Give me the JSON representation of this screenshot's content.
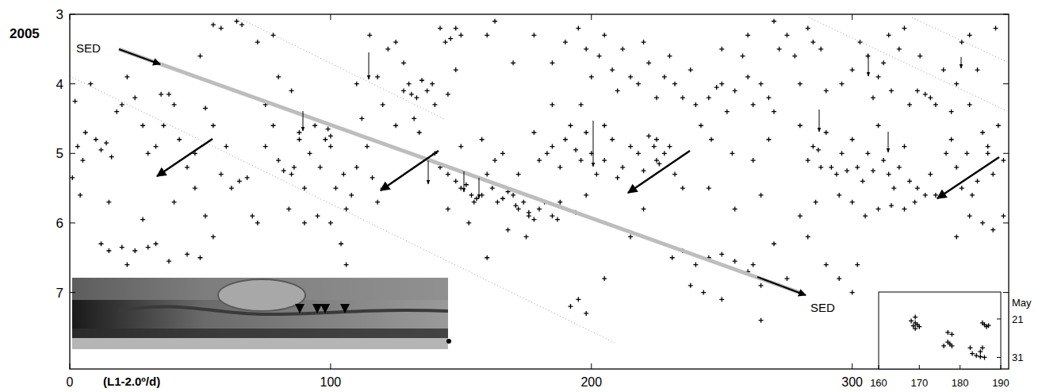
{
  "chart_data": [
    {
      "type": "scatter",
      "xlabel": "(L1-2.0º/d)",
      "year_label": "2005",
      "annotations": [
        "SED",
        "SED"
      ],
      "marker": "plus",
      "color": "#000000",
      "x": [
        2,
        3,
        5,
        1,
        4,
        8,
        10,
        12,
        14,
        16,
        6,
        18,
        20,
        22,
        25,
        28,
        30,
        33,
        35,
        38,
        40,
        42,
        45,
        48,
        50,
        52,
        55,
        58,
        36,
        15,
        12,
        15,
        20,
        25,
        30,
        33,
        38,
        45,
        50,
        55,
        22,
        28,
        40,
        48,
        52,
        60,
        62,
        65,
        68,
        70,
        72,
        55,
        58,
        64,
        66,
        72,
        78,
        80,
        75,
        78,
        80,
        82,
        85,
        86,
        88,
        90,
        92,
        94,
        96,
        98,
        99,
        100,
        100,
        102,
        105,
        108,
        110,
        112,
        84,
        90,
        95,
        100,
        106,
        75,
        85,
        88,
        110,
        114,
        116,
        118,
        120,
        104,
        106,
        118,
        122,
        125,
        128,
        128,
        130,
        131,
        133,
        135,
        137,
        139,
        142,
        144,
        146,
        148,
        150,
        140,
        145,
        148,
        120,
        115,
        125,
        134,
        132,
        140,
        142,
        145,
        148,
        150,
        152,
        154,
        155,
        156,
        158,
        160,
        162,
        164,
        166,
        168,
        170,
        171,
        172,
        174,
        176,
        176,
        178,
        180,
        182,
        185,
        187,
        163,
        166,
        172,
        150,
        158,
        145,
        153,
        168,
        175,
        160,
        178,
        180,
        183,
        185,
        188,
        190,
        192,
        194,
        196,
        198,
        200,
        202,
        205,
        208,
        210,
        212,
        215,
        218,
        220,
        222,
        224,
        225,
        225,
        226,
        228,
        230,
        232,
        235,
        188,
        194,
        198,
        185,
        196,
        205,
        190,
        195,
        198,
        200,
        203,
        205,
        208,
        210,
        212,
        215,
        218,
        220,
        222,
        225,
        228,
        230,
        232,
        235,
        238,
        240,
        185,
        178,
        160,
        163,
        170,
        242,
        245,
        248,
        250,
        252,
        255,
        258,
        260,
        262,
        265,
        268,
        270,
        272,
        275,
        278,
        280,
        283,
        285,
        288,
        290,
        270,
        260,
        250,
        246,
        254,
        262,
        268,
        231,
        235,
        240,
        245,
        250,
        255,
        260,
        262,
        265,
        270,
        265,
        243,
        250,
        238,
        192,
        195,
        198,
        205,
        215,
        220,
        245,
        255,
        265,
        280,
        290,
        295,
        300,
        302,
        283,
        275,
        280,
        283,
        285,
        287,
        288,
        290,
        292,
        294,
        296,
        298,
        300,
        302,
        304,
        306,
        308,
        310,
        312,
        314,
        316,
        318,
        320,
        322,
        325,
        328,
        330,
        332,
        286,
        295,
        300,
        305,
        310,
        315,
        320,
        324,
        296,
        300,
        303,
        306,
        308,
        310,
        312,
        315,
        318,
        320,
        322,
        325,
        328,
        330,
        332,
        335,
        338,
        340,
        342,
        345,
        326,
        314,
        336,
        338,
        340,
        342,
        344,
        346,
        348,
        350,
        352,
        354,
        356,
        358,
        345,
        350,
        354,
        358,
        340,
        355,
        348,
        352,
        345
      ],
      "values": [
        4.25,
        4.9,
        5.1,
        5.35,
        5.6,
        4.0,
        4.8,
        4.95,
        4.85,
        5.05,
        4.7,
        4.4,
        4.3,
        3.9,
        4.2,
        4.6,
        5.0,
        4.9,
        4.15,
        4.15,
        4.3,
        4.8,
        5.2,
        5.0,
        3.6,
        4.35,
        4.6,
        5.3,
        4.6,
        5.7,
        6.3,
        6.4,
        6.35,
        6.4,
        6.35,
        6.3,
        6.55,
        6.45,
        6.5,
        6.2,
        6.6,
        5.95,
        5.7,
        5.5,
        5.9,
        4.9,
        5.5,
        5.4,
        5.35,
        5.9,
        6.0,
        3.15,
        3.2,
        3.1,
        3.15,
        3.4,
        3.3,
        3.9,
        4.9,
        4.6,
        5.1,
        5.25,
        5.3,
        5.2,
        4.8,
        5.5,
        5.0,
        4.6,
        5.2,
        4.8,
        4.65,
        4.9,
        4.75,
        5.5,
        5.3,
        5.6,
        5.2,
        4.5,
        5.8,
        6.0,
        5.9,
        6.0,
        5.8,
        4.3,
        4.1,
        4.7,
        4.0,
        4.9,
        5.35,
        5.7,
        5.5,
        6.3,
        6.6,
        3.9,
        3.5,
        3.4,
        3.7,
        4.1,
        4.0,
        4.15,
        4.2,
        3.95,
        4.1,
        4.0,
        3.2,
        3.4,
        3.35,
        3.2,
        3.3,
        4.3,
        4.15,
        3.8,
        4.3,
        3.3,
        4.6,
        4.7,
        4.5,
        5.0,
        5.2,
        5.3,
        5.4,
        5.5,
        5.45,
        5.6,
        5.7,
        5.65,
        5.6,
        5.3,
        5.5,
        5.7,
        5.65,
        5.55,
        5.6,
        5.75,
        5.8,
        5.7,
        5.85,
        5.9,
        5.95,
        5.8,
        5.7,
        5.9,
        5.95,
        5.1,
        5.0,
        5.3,
        4.9,
        4.8,
        5.8,
        6.0,
        6.1,
        6.2,
        6.5,
        4.7,
        5.1,
        5.0,
        4.9,
        5.2,
        4.8,
        4.6,
        4.95,
        5.1,
        4.7,
        5.0,
        5.3,
        5.1,
        4.8,
        5.35,
        5.2,
        4.9,
        5.0,
        5.25,
        4.75,
        4.9,
        4.8,
        5.1,
        5.15,
        5.0,
        4.9,
        5.3,
        5.5,
        5.7,
        5.85,
        5.6,
        4.3,
        4.3,
        4.6,
        3.4,
        3.2,
        3.5,
        3.9,
        3.6,
        3.3,
        3.8,
        4.1,
        3.5,
        3.9,
        4.0,
        3.4,
        3.7,
        4.2,
        3.9,
        3.6,
        4.0,
        4.2,
        3.8,
        4.3,
        3.7,
        3.3,
        3.3,
        3.1,
        3.7,
        4.6,
        4.2,
        4.05,
        4.0,
        4.4,
        4.1,
        3.6,
        3.9,
        4.3,
        4.0,
        4.2,
        4.4,
        3.5,
        3.3,
        3.6,
        4.0,
        3.2,
        3.4,
        3.5,
        4.1,
        3.1,
        3.3,
        3.5,
        4.8,
        5.0,
        5.1,
        4.8,
        6.5,
        6.4,
        6.6,
        6.5,
        6.45,
        6.55,
        6.7,
        6.6,
        6.9,
        6.3,
        7.4,
        7.0,
        7.1,
        6.9,
        7.2,
        7.1,
        7.3,
        6.8,
        6.2,
        5.8,
        5.5,
        5.8,
        5.6,
        5.9,
        6.6,
        6.8,
        7.0,
        6.6,
        6.2,
        6.8,
        4.6,
        5.1,
        4.9,
        4.95,
        5.2,
        4.7,
        5.2,
        5.3,
        5.0,
        5.25,
        4.8,
        5.2,
        5.4,
        5.0,
        5.25,
        4.6,
        5.1,
        5.3,
        5.5,
        5.2,
        4.9,
        5.4,
        5.5,
        5.6,
        5.3,
        5.6,
        5.7,
        5.6,
        5.7,
        5.9,
        5.8,
        5.75,
        5.8,
        5.7,
        4.0,
        3.8,
        3.4,
        3.6,
        4.2,
        3.9,
        3.7,
        4.1,
        3.5,
        3.2,
        4.3,
        4.1,
        4.15,
        4.2,
        4.3,
        3.8,
        4.4,
        4.0,
        3.4,
        4.3,
        3.6,
        3.3,
        5.0,
        4.8,
        5.2,
        5.5,
        5.0,
        5.6,
        5.4,
        4.7,
        5.0,
        5.3,
        4.6,
        5.1,
        5.9,
        6.0,
        6.1,
        5.9,
        6.2,
        3.2,
        3.8,
        4.9,
        3.3
      ],
      "xlim": [
        0,
        360
      ],
      "xticks": [
        0,
        100,
        200,
        300
      ],
      "ylim": [
        8.1,
        3
      ],
      "yticks": [
        3,
        4,
        5,
        6,
        7
      ]
    },
    {
      "type": "scatter",
      "ylabel": "May",
      "marker": "plus",
      "color": "#000000",
      "x": [
        168,
        169,
        169.5,
        168.5,
        170,
        169,
        169,
        177,
        177.5,
        178,
        176,
        177,
        178,
        182.5,
        183,
        184,
        185,
        185,
        186,
        185.5,
        186,
        186.5,
        187,
        185.5
      ],
      "values": [
        21.5,
        22,
        22.5,
        22.8,
        23,
        20.5,
        23.5,
        27,
        27.5,
        28,
        28,
        24.5,
        25,
        28.5,
        30,
        30.5,
        29.5,
        30.8,
        31,
        28.5,
        22.5,
        23,
        22.7,
        22
      ],
      "xlim": [
        160,
        190
      ],
      "xticks": [
        160,
        170,
        180,
        190
      ],
      "ylim": [
        34,
        14
      ],
      "yticks": [
        21,
        31
      ]
    }
  ]
}
